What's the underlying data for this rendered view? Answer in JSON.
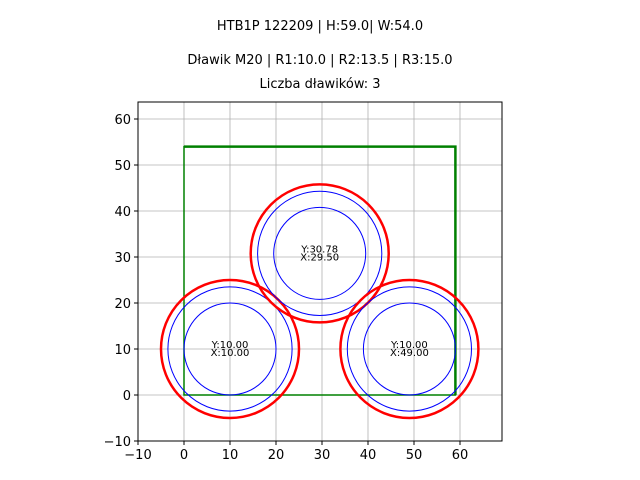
{
  "header": {
    "title_line1": "HTB1P 122209 | H:59.0| W:54.0",
    "title_line2": "Dławik M20 | R1:10.0 | R2:13.5 | R3:15.0",
    "title_line3": "Liczba dławików: 3"
  },
  "chart_data": {
    "type": "scatter",
    "title": "HTB1P 122209 | H:59.0| W:54.0 / Dławik M20 | R1:10.0 | R2:13.5 | R3:15.0 / Liczba dławików: 3",
    "xlabel": "",
    "ylabel": "",
    "xlim": [
      -10,
      69
    ],
    "ylim": [
      -10,
      64
    ],
    "x_ticks": [
      -10,
      0,
      10,
      20,
      30,
      40,
      50,
      60
    ],
    "y_ticks": [
      -10,
      0,
      10,
      20,
      30,
      40,
      50,
      60
    ],
    "grid": true,
    "enclosure": {
      "x": 0,
      "y": 0,
      "width": 59,
      "height": 54,
      "color": "#008000"
    },
    "radii": {
      "r1": 10.0,
      "r2": 13.5,
      "r3": 15.0
    },
    "colors": {
      "r1": "#0000ff",
      "r2": "#0000ff",
      "r3": "#ff0000"
    },
    "glands": [
      {
        "x": 10.0,
        "y": 10.0,
        "label_y": "Y:10.00",
        "label_x": "X:10.00"
      },
      {
        "x": 29.5,
        "y": 30.78,
        "label_y": "Y:30.78",
        "label_x": "X:29.50"
      },
      {
        "x": 49.0,
        "y": 10.0,
        "label_y": "Y:10.00",
        "label_x": "X:49.00"
      }
    ]
  },
  "axis": {
    "x_tick_labels": [
      "−10",
      "0",
      "10",
      "20",
      "30",
      "40",
      "50",
      "60"
    ],
    "y_tick_labels": [
      "−10",
      "0",
      "10",
      "20",
      "30",
      "40",
      "50",
      "60"
    ]
  }
}
